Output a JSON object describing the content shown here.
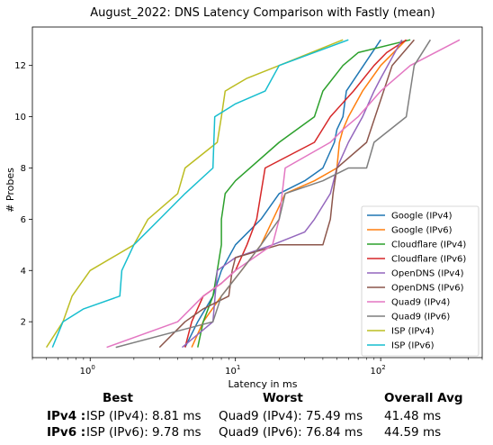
{
  "chart_data": {
    "type": "line",
    "title": "August_2022: DNS Latency Comparison with Fastly (mean)",
    "xlabel": "Latency in ms",
    "ylabel": "# Probes",
    "xscale": "log",
    "xlim": [
      0.4,
      500
    ],
    "ylim": [
      0.6,
      13.5
    ],
    "xticks": [
      {
        "v": 1,
        "label": "10",
        "exp": "0"
      },
      {
        "v": 10,
        "label": "10",
        "exp": "1"
      },
      {
        "v": 100,
        "label": "10",
        "exp": "2"
      }
    ],
    "yticks": [
      2,
      4,
      6,
      8,
      10,
      12
    ],
    "legend_position": "lower right",
    "series": [
      {
        "name": "Google (IPv4)",
        "color": "#1f77b4",
        "x": [
          4.5,
          5.5,
          7.0,
          8.0,
          10.0,
          15.0,
          20.0,
          30.0,
          40.0,
          48.0,
          50.0,
          55.0,
          58.0,
          100.0
        ],
        "y": [
          1,
          2,
          3,
          4,
          5,
          6,
          7,
          7.5,
          8,
          9,
          9.5,
          10,
          11,
          13
        ]
      },
      {
        "name": "Google (IPv6)",
        "color": "#ff7f0e",
        "x": [
          5.0,
          6.0,
          8.0,
          11.0,
          15.0,
          22.0,
          35.0,
          50.0,
          52.0,
          55.0,
          60.0,
          75.0,
          100.0,
          150.0
        ],
        "y": [
          1,
          2,
          3,
          4,
          5,
          7,
          7.5,
          8,
          9,
          9.5,
          10,
          11,
          12,
          13
        ]
      },
      {
        "name": "Cloudflare (IPv4)",
        "color": "#2ca02c",
        "x": [
          5.5,
          6.0,
          7.0,
          7.5,
          8.0,
          8.0,
          8.5,
          10.0,
          20.0,
          35.0,
          40.0,
          55.0,
          70.0,
          160.0
        ],
        "y": [
          1,
          2,
          3,
          4,
          5,
          6,
          7,
          7.5,
          9,
          10,
          11,
          12,
          12.5,
          13
        ]
      },
      {
        "name": "Cloudflare (IPv6)",
        "color": "#d62728",
        "x": [
          4.5,
          5.0,
          6.0,
          8.0,
          10.0,
          12.0,
          14.0,
          16.0,
          35.0,
          45.0,
          65.0,
          90.0,
          110.0,
          150.0
        ],
        "y": [
          1,
          2,
          3,
          3.5,
          4,
          5,
          6,
          8,
          9,
          10,
          11,
          12,
          12.5,
          13
        ]
      },
      {
        "name": "OpenDNS (IPv4)",
        "color": "#9467bd",
        "x": [
          4.3,
          7.0,
          7.5,
          10.0,
          18.0,
          30.0,
          35.0,
          45.0,
          50.0,
          60.0,
          75.0,
          90.0,
          100.0,
          140.0
        ],
        "y": [
          1,
          2,
          4,
          4.5,
          5,
          5.5,
          6,
          7,
          8,
          9,
          10,
          11,
          11.5,
          13
        ]
      },
      {
        "name": "OpenDNS (IPv6)",
        "color": "#8c564b",
        "x": [
          3.0,
          4.5,
          6.0,
          9.0,
          9.5,
          10.0,
          20.0,
          40.0,
          45.0,
          47.0,
          50.0,
          80.0,
          120.0,
          170.0
        ],
        "y": [
          1,
          2,
          2.5,
          3,
          4,
          4.5,
          5,
          5,
          6,
          7,
          8,
          9,
          12,
          13
        ]
      },
      {
        "name": "Quad9 (IPv4)",
        "color": "#e377c2",
        "x": [
          1.3,
          4.0,
          6.0,
          8.0,
          10.0,
          18.0,
          20.0,
          22.0,
          45.0,
          55.0,
          70.0,
          100.0,
          160.0,
          350.0
        ],
        "y": [
          1,
          2,
          3,
          3.5,
          4,
          5,
          6,
          8,
          9,
          9.5,
          10,
          11,
          12,
          13
        ]
      },
      {
        "name": "Quad9 (IPv6)",
        "color": "#7f7f7f",
        "x": [
          1.5,
          7.0,
          8.0,
          11.0,
          15.0,
          20.0,
          22.0,
          40.0,
          60.0,
          80.0,
          90.0,
          150.0,
          170.0,
          220.0
        ],
        "y": [
          1,
          2,
          3,
          4,
          5,
          6,
          7,
          7.5,
          8,
          8,
          9,
          10,
          12,
          13
        ]
      },
      {
        "name": "ISP (IPv4)",
        "color": "#bcbd22",
        "x": [
          0.5,
          0.65,
          0.75,
          1.0,
          2.0,
          2.5,
          4.0,
          4.5,
          7.5,
          8.0,
          8.5,
          12.0,
          20.0,
          55.0
        ],
        "y": [
          1,
          2,
          3,
          4,
          5,
          6,
          7,
          8,
          9,
          10,
          11,
          11.5,
          12,
          13
        ]
      },
      {
        "name": "ISP (IPv6)",
        "color": "#17becf",
        "x": [
          0.55,
          0.65,
          0.9,
          1.6,
          1.65,
          2.0,
          3.0,
          4.5,
          7.0,
          7.2,
          10.0,
          16.0,
          20.0,
          60.0
        ],
        "y": [
          1,
          2,
          2.5,
          3,
          4,
          5,
          6,
          7,
          8,
          10,
          10.5,
          11,
          12,
          13
        ]
      }
    ]
  },
  "stats": {
    "col_best": "Best",
    "col_worst": "Worst",
    "col_avg": "Overall Avg",
    "rows": [
      {
        "label": "IPv4 :",
        "best": "ISP (IPv4): 8.81 ms",
        "worst": "Quad9 (IPv4): 75.49 ms",
        "avg": "41.48 ms"
      },
      {
        "label": "IPv6 :",
        "best": "ISP (IPv6): 9.78 ms",
        "worst": "Quad9 (IPv6): 76.84 ms",
        "avg": "44.59 ms"
      }
    ]
  }
}
